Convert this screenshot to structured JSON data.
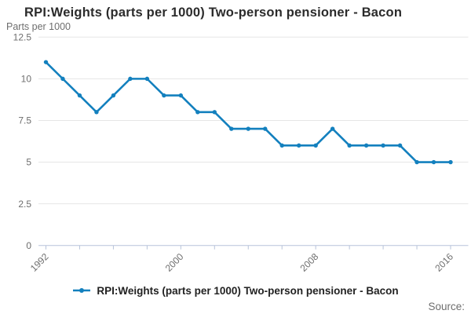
{
  "title": "RPI:Weights (parts per 1000) Two-person pensioner - Bacon",
  "unit_label": "Parts per 1000",
  "source_label": "Source:",
  "legend": {
    "label": "RPI:Weights (parts per 1000) Two-person pensioner - Bacon"
  },
  "colors": {
    "line": "#1380be",
    "grid": "#e6e6e6",
    "axis": "#b7c3da",
    "text_muted": "#6e6e6e",
    "title_text": "#2b2b2b"
  },
  "chart_data": {
    "type": "line",
    "title": "RPI:Weights (parts per 1000) Two-person pensioner - Bacon",
    "ylabel": "Parts per 1000",
    "series": [
      {
        "name": "RPI:Weights (parts per 1000) Two-person pensioner - Bacon",
        "color": "#1380be",
        "x": [
          1992,
          1993,
          1994,
          1995,
          1996,
          1997,
          1998,
          1999,
          2000,
          2001,
          2002,
          2003,
          2004,
          2005,
          2006,
          2007,
          2008,
          2009,
          2010,
          2011,
          2012,
          2013,
          2014,
          2015,
          2016
        ],
        "values": [
          11,
          10,
          9,
          8,
          9,
          10,
          10,
          9,
          9,
          8,
          8,
          7,
          7,
          7,
          6,
          6,
          6,
          7,
          6,
          6,
          6,
          6,
          5,
          5,
          5
        ]
      }
    ],
    "xlim": [
      1992,
      2016
    ],
    "ylim": [
      0,
      12.5
    ],
    "yticks": [
      0,
      2.5,
      5,
      7.5,
      10,
      12.5
    ],
    "ytick_labels": [
      "0",
      "2.5",
      "5",
      "7.5",
      "10",
      "12.5"
    ],
    "xtick_step_years": 2,
    "xtick_labeled": [
      1992,
      2000,
      2008,
      2016
    ],
    "xtick_label_rotation": -45,
    "grid": true,
    "legend_position": "bottom"
  }
}
